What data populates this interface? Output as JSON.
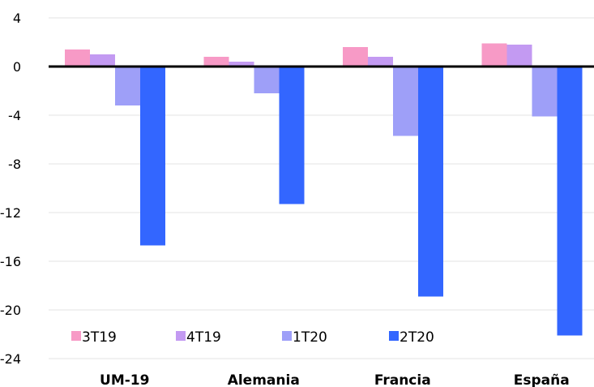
{
  "chart_data": {
    "type": "bar",
    "title": "",
    "xlabel": "",
    "ylabel": "",
    "categories": [
      "UM-19",
      "Alemania",
      "Francia",
      "España"
    ],
    "ylim": [
      -24,
      4
    ],
    "yticks": [
      4,
      0,
      -4,
      -8,
      -12,
      -16,
      -20,
      -24
    ],
    "grid": true,
    "legend_position": "bottom-left",
    "series": [
      {
        "name": "3T19",
        "color": "#f79ac6",
        "values": [
          1.4,
          0.8,
          1.6,
          1.9
        ]
      },
      {
        "name": "4T19",
        "color": "#c39af2",
        "values": [
          1.0,
          0.4,
          0.8,
          1.8
        ]
      },
      {
        "name": "1T20",
        "color": "#9e9ff8",
        "values": [
          -3.2,
          -2.2,
          -5.7,
          -4.1
        ]
      },
      {
        "name": "2T20",
        "color": "#3366ff",
        "values": [
          -14.7,
          -11.3,
          -18.9,
          -22.1
        ]
      }
    ]
  }
}
